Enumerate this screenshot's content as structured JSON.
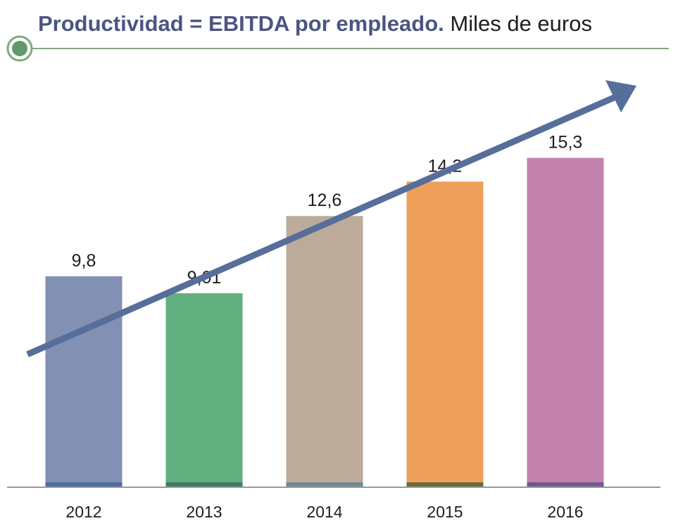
{
  "header": {
    "title_bold": "Productividad = EBITDA por empleado.",
    "title_rest": "Miles de euros",
    "rule_color": "#7fa97d",
    "marker_color": "#5f9a6c"
  },
  "chart_data": {
    "type": "bar",
    "title": "Productividad = EBITDA por empleado. Miles de euros",
    "xlabel": "",
    "ylabel": "",
    "categories": [
      "2012",
      "2013",
      "2014",
      "2015",
      "2016"
    ],
    "values": [
      9.8,
      9.01,
      12.6,
      14.2,
      15.3
    ],
    "value_labels": [
      "9,8",
      "9,01",
      "12,6",
      "14,2",
      "15,3"
    ],
    "colors": [
      "#8290b3",
      "#62b07f",
      "#bcab9b",
      "#eea05a",
      "#c282ab"
    ],
    "base_colors": [
      "#4d6d9e",
      "#3f7a63",
      "#6f8a90",
      "#6b6a3a",
      "#6e5a8e"
    ],
    "ylim": [
      0,
      19.5
    ],
    "grid": false,
    "legend": "none",
    "trend_arrow": true,
    "trend_arrow_color": "#566e9a",
    "axis_color": "#999999"
  }
}
